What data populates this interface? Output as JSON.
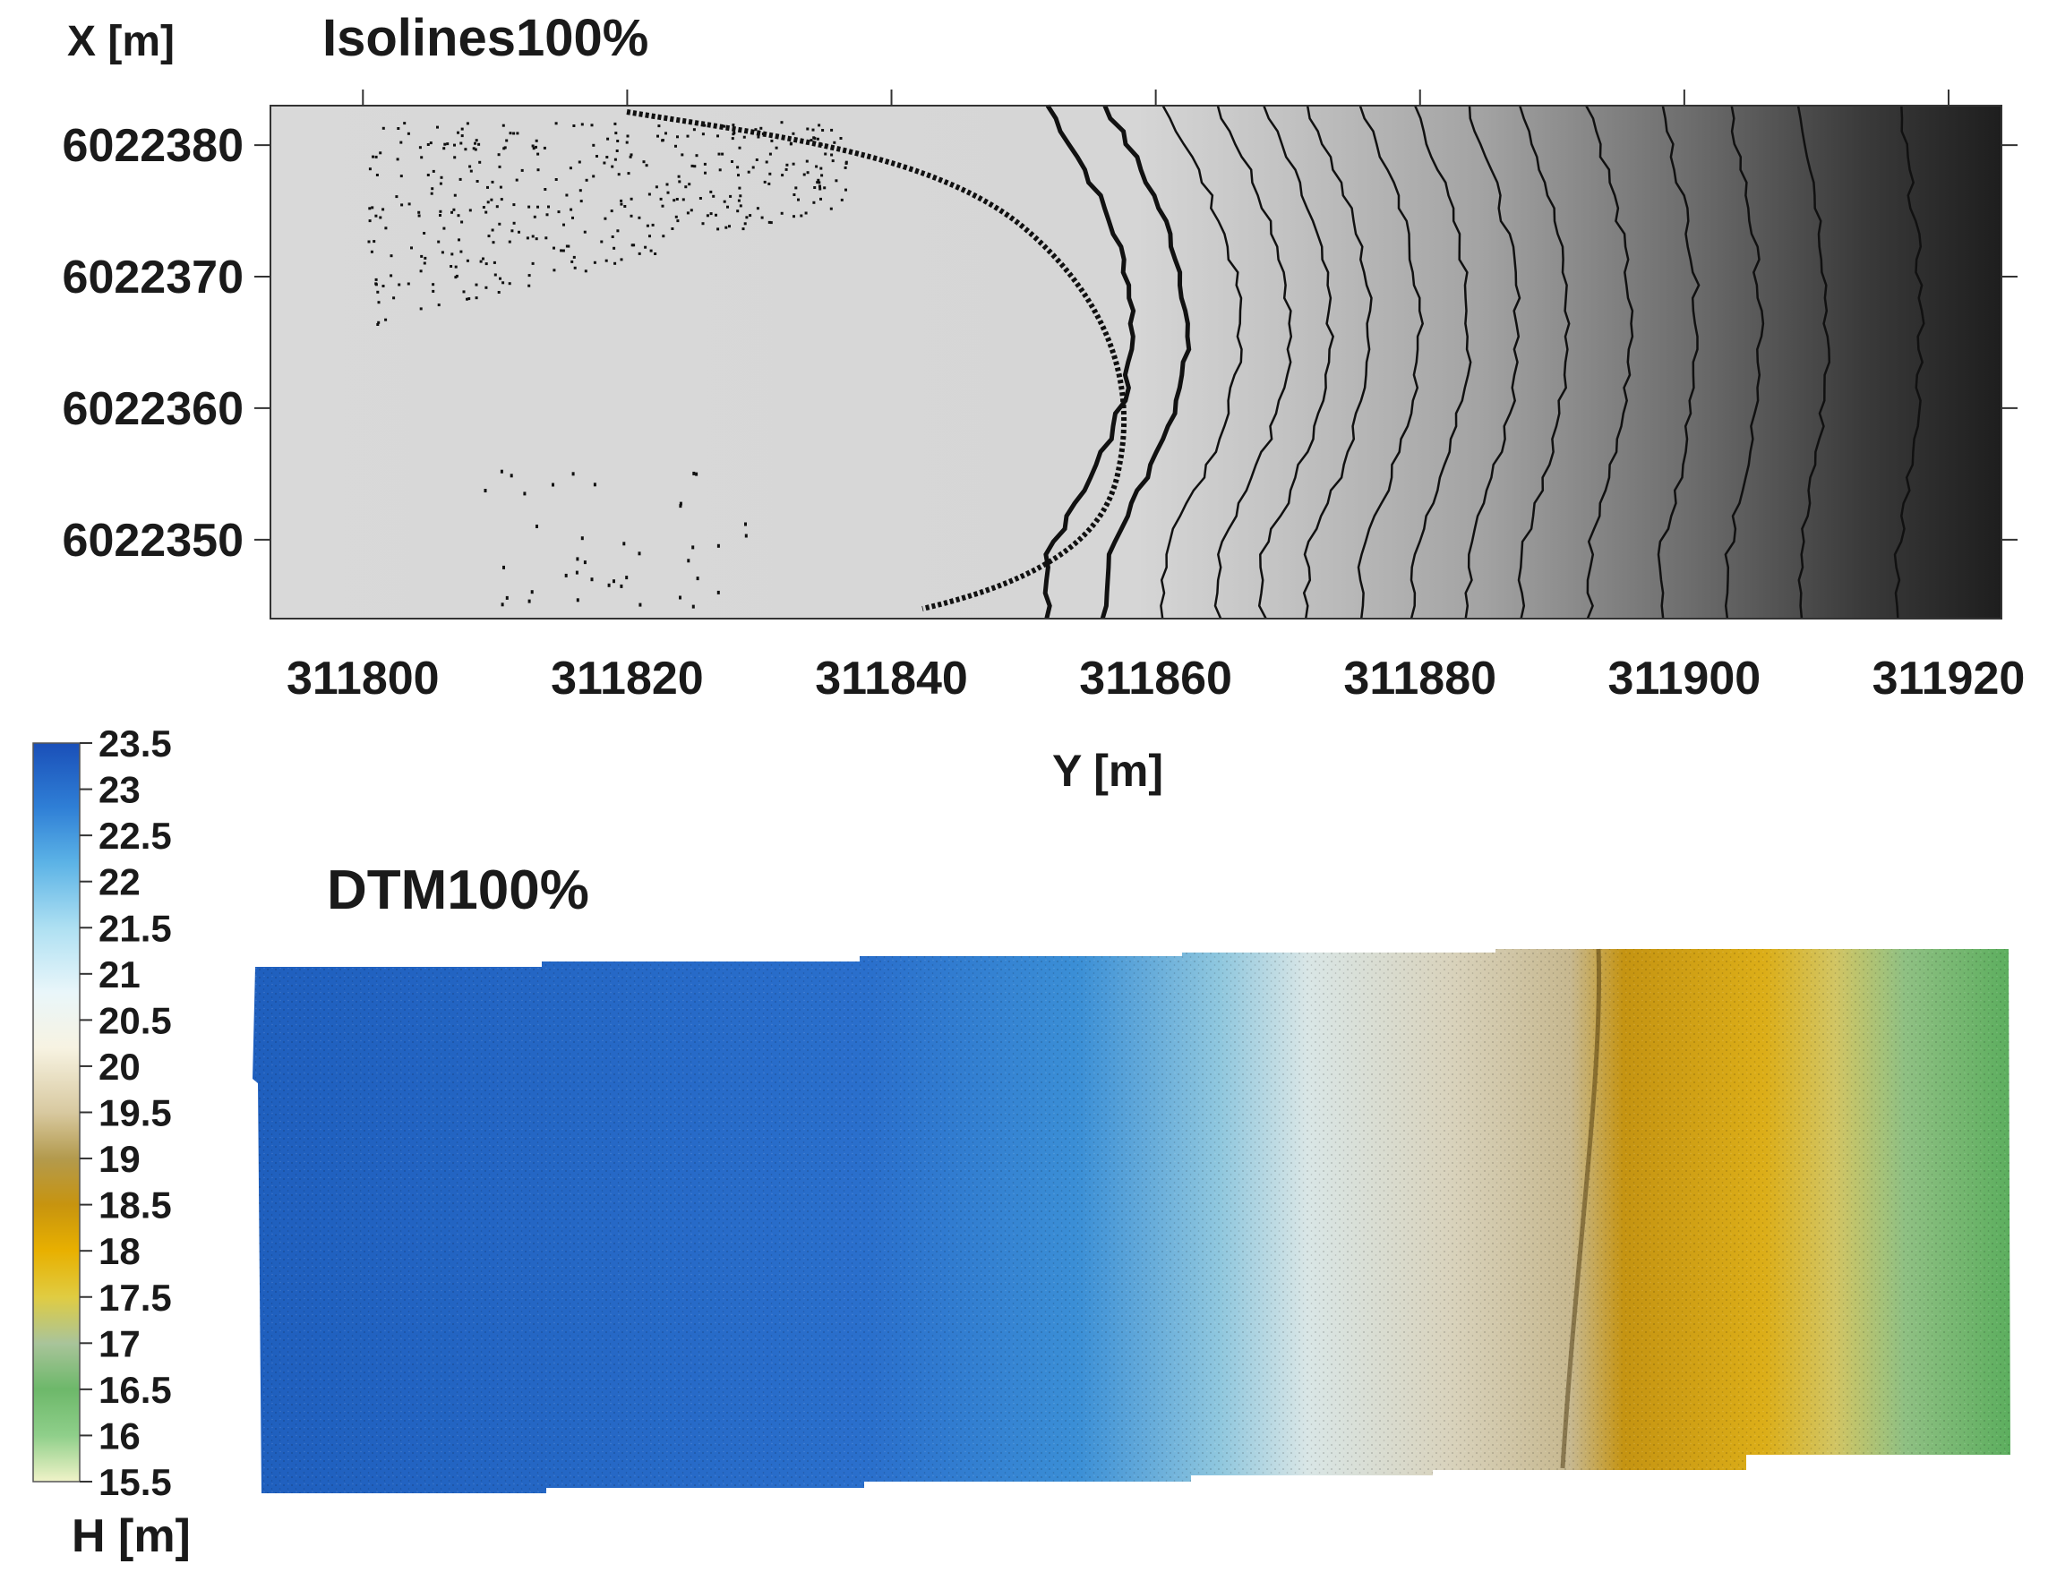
{
  "isolines": {
    "title": "Isolines100%",
    "xlabel": "Y [m]",
    "ylabel": "X [m]",
    "x_ticks": [
      "311800",
      "311820",
      "311840",
      "311860",
      "311880",
      "311900",
      "311920"
    ],
    "y_ticks": [
      "6022380",
      "6022370",
      "6022360",
      "6022350"
    ],
    "x_range": [
      311793,
      311924
    ],
    "y_range": [
      6022344,
      6022383
    ]
  },
  "dtm": {
    "title": "DTM100%"
  },
  "colorbar": {
    "label": "H [m]",
    "ticks": [
      "23.5",
      "23",
      "22.5",
      "22",
      "21.5",
      "21",
      "20.5",
      "20",
      "19.5",
      "19",
      "18.5",
      "18",
      "17.5",
      "17",
      "16.5",
      "16",
      "15.5"
    ],
    "range": [
      15.5,
      23.5
    ],
    "stops": [
      {
        "value": 23.5,
        "color": "#1a4fb8"
      },
      {
        "value": 22.8,
        "color": "#2f7fd6"
      },
      {
        "value": 22.2,
        "color": "#5cb3e6"
      },
      {
        "value": 21.5,
        "color": "#aee0f2"
      },
      {
        "value": 20.8,
        "color": "#e9f6fa"
      },
      {
        "value": 20.2,
        "color": "#f7f3e2"
      },
      {
        "value": 19.5,
        "color": "#d8c9a0"
      },
      {
        "value": 19.0,
        "color": "#b39a4d"
      },
      {
        "value": 18.5,
        "color": "#c7940f"
      },
      {
        "value": 18.0,
        "color": "#e8b000"
      },
      {
        "value": 17.5,
        "color": "#e0cc42"
      },
      {
        "value": 17.0,
        "color": "#a9c49a"
      },
      {
        "value": 16.5,
        "color": "#6db86a"
      },
      {
        "value": 16.0,
        "color": "#8fcf8a"
      },
      {
        "value": 15.5,
        "color": "#f0f3c8"
      }
    ]
  }
}
